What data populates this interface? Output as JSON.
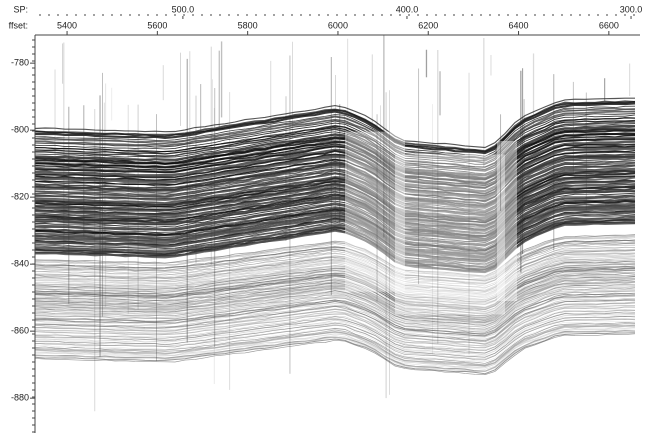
{
  "chart_data": {
    "type": "seismic",
    "x2label": "SP:",
    "xlabel": "ffset:",
    "xlim": [
      5329,
      6669
    ],
    "xticks": [
      5400,
      5600,
      5800,
      6000,
      6200,
      6400,
      6600
    ],
    "x2lim": [
      566,
      296
    ],
    "x2ticks": [
      {
        "value": 500,
        "label": "500.0"
      },
      {
        "value": 400,
        "label": "400.0"
      },
      {
        "value": 300,
        "label": "300.0"
      }
    ],
    "ylim": [
      -771.6,
      -890.4
    ],
    "yticks": [
      -780,
      -800,
      -820,
      -840,
      -860,
      -880
    ]
  }
}
